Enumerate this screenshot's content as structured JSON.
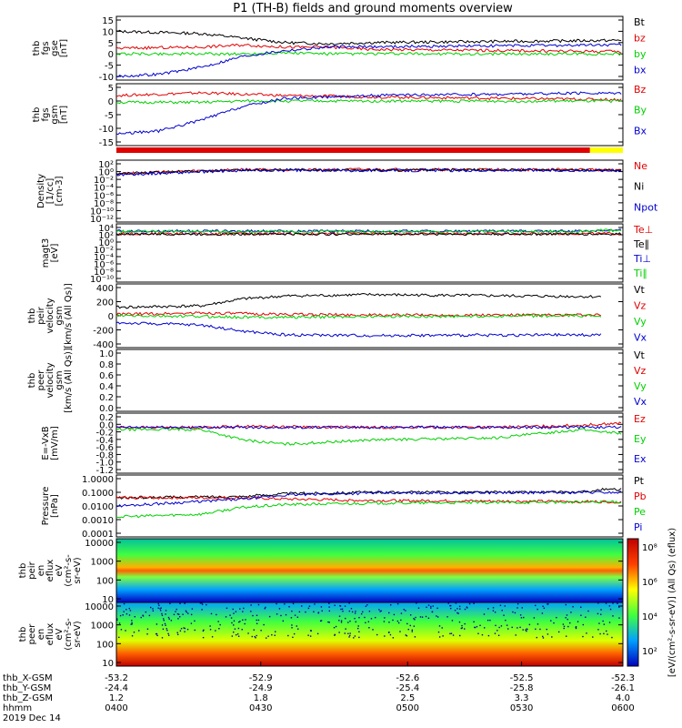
{
  "title": "P1 (TH-B) fields and ground moments overview",
  "colors": {
    "black": "#000000",
    "red": "#e00000",
    "green": "#00d000",
    "blue": "#0000d0",
    "yellow": "#ffff00"
  },
  "chart_data": [
    {
      "type": "line",
      "id": "fgs_gse",
      "ylabel": [
        "thb",
        "fgs",
        "gse",
        "[nT]"
      ],
      "ylim": [
        -10,
        15
      ],
      "yticks": [
        "15",
        "10",
        "5",
        "0",
        "-5",
        "-10"
      ],
      "legend": [
        {
          "name": "Bt",
          "color": "#000000"
        },
        {
          "name": "bz",
          "color": "#e00000"
        },
        {
          "name": "by",
          "color": "#00d000"
        },
        {
          "name": "bx",
          "color": "#0000d0"
        }
      ],
      "series": [
        {
          "name": "Bt",
          "x": [
            0,
            20,
            30,
            40,
            50,
            60,
            120
          ],
          "y": [
            10,
            9,
            7,
            5,
            4.5,
            5,
            6
          ]
        },
        {
          "name": "bz",
          "x": [
            0,
            20,
            30,
            40,
            50,
            60,
            120
          ],
          "y": [
            2.5,
            3,
            4,
            3,
            3,
            2,
            1
          ]
        },
        {
          "name": "by",
          "x": [
            0,
            20,
            30,
            40,
            50,
            60,
            120
          ],
          "y": [
            0,
            0,
            0,
            0.5,
            0,
            0,
            0
          ]
        },
        {
          "name": "bx",
          "x": [
            0,
            10,
            20,
            30,
            40,
            50,
            120
          ],
          "y": [
            -10,
            -9,
            -6,
            -1,
            1.5,
            3,
            4
          ]
        }
      ]
    },
    {
      "type": "line",
      "id": "fgs_gsm",
      "ylabel": [
        "thb",
        "fgs",
        "gsm",
        "[nT]"
      ],
      "ylim": [
        -15,
        5
      ],
      "yticks": [
        "5",
        "0",
        "-5",
        "-10",
        "-15"
      ],
      "legend": [
        {
          "name": "Bz",
          "color": "#e00000"
        },
        {
          "name": "By",
          "color": "#00d000"
        },
        {
          "name": "Bx",
          "color": "#0000d0"
        }
      ],
      "series": [
        {
          "name": "Bz",
          "x": [
            0,
            20,
            30,
            40,
            60,
            120
          ],
          "y": [
            2,
            3,
            2.5,
            2,
            1.5,
            0.5
          ]
        },
        {
          "name": "By",
          "x": [
            0,
            20,
            30,
            40,
            60,
            120
          ],
          "y": [
            -0.5,
            -0.5,
            0,
            0,
            0,
            0
          ]
        },
        {
          "name": "Bx",
          "x": [
            0,
            10,
            20,
            30,
            40,
            60,
            120
          ],
          "y": [
            -12,
            -11,
            -7,
            -2,
            1,
            2,
            3
          ]
        }
      ]
    },
    {
      "type": "line",
      "id": "density",
      "log": true,
      "ylabel": [
        "Density",
        "[1/cc]",
        "[cm-3]"
      ],
      "ylim": [
        -12,
        2
      ],
      "yticks": [
        "10²",
        "10⁰",
        "10⁻²",
        "10⁻⁴",
        "10⁻⁶",
        "10⁻⁸",
        "10⁻¹⁰",
        "10⁻¹²"
      ],
      "legend": [
        {
          "name": "Ne",
          "color": "#e00000"
        },
        {
          "name": "Ni",
          "color": "#000000"
        },
        {
          "name": "Npot",
          "color": "#0000d0"
        }
      ],
      "series": [
        {
          "name": "Ne",
          "x": [
            0,
            30,
            60,
            120
          ],
          "y": [
            -0.5,
            0.5,
            0.5,
            0.5
          ]
        },
        {
          "name": "Ni",
          "x": [
            0,
            30,
            60,
            120
          ],
          "y": [
            -0.5,
            0.4,
            0.4,
            0.4
          ]
        },
        {
          "name": "Npot",
          "x": [
            0,
            30,
            60,
            120
          ],
          "y": [
            -0.8,
            0.3,
            0.3,
            0.3
          ]
        }
      ]
    },
    {
      "type": "line",
      "id": "temperature",
      "log": true,
      "ylabel": [
        "magt3",
        "[eV]"
      ],
      "ylim": [
        -10,
        4
      ],
      "yticks": [
        "10⁴",
        "10²",
        "10⁰",
        "10⁻²",
        "10⁻⁴",
        "10⁻⁶",
        "10⁻⁸",
        "10⁻¹⁰"
      ],
      "legend": [
        {
          "name": "Te⊥",
          "color": "#e00000"
        },
        {
          "name": "Te∥",
          "color": "#000000"
        },
        {
          "name": "Ti⊥",
          "color": "#0000d0"
        },
        {
          "name": "Ti∥",
          "color": "#00d000"
        }
      ],
      "series": [
        {
          "name": "Te⊥",
          "x": [
            0,
            120
          ],
          "y": [
            2.3,
            2.3
          ]
        },
        {
          "name": "Te∥",
          "x": [
            0,
            120
          ],
          "y": [
            2.2,
            2.2
          ]
        },
        {
          "name": "Ti⊥",
          "x": [
            0,
            110,
            115,
            120
          ],
          "y": [
            3,
            3,
            3.3,
            3.3
          ]
        },
        {
          "name": "Ti∥",
          "x": [
            0,
            110,
            115,
            120
          ],
          "y": [
            2.9,
            2.9,
            3.2,
            3.2
          ]
        }
      ]
    },
    {
      "type": "line",
      "id": "peir_velocity",
      "ylabel": [
        "thb",
        "peir",
        "velocity",
        "gsm",
        "[km/s (All Qs)]"
      ],
      "ylim": [
        -400,
        400
      ],
      "yticks": [
        "400",
        "200",
        "0",
        "-200",
        "-400"
      ],
      "legend": [
        {
          "name": "Vt",
          "color": "#000000"
        },
        {
          "name": "Vz",
          "color": "#e00000"
        },
        {
          "name": "Vy",
          "color": "#00d000"
        },
        {
          "name": "Vx",
          "color": "#0000d0"
        }
      ],
      "series": [
        {
          "name": "Vt",
          "x": [
            0,
            20,
            30,
            40,
            60,
            115
          ],
          "y": [
            120,
            140,
            240,
            280,
            300,
            270
          ]
        },
        {
          "name": "Vz",
          "x": [
            0,
            20,
            30,
            40,
            60,
            115
          ],
          "y": [
            20,
            40,
            30,
            20,
            10,
            10
          ]
        },
        {
          "name": "Vy",
          "x": [
            0,
            20,
            30,
            40,
            60,
            115
          ],
          "y": [
            0,
            -10,
            -20,
            -20,
            -10,
            0
          ]
        },
        {
          "name": "Vx",
          "x": [
            0,
            20,
            30,
            40,
            60,
            115
          ],
          "y": [
            -100,
            -130,
            -220,
            -270,
            -280,
            -270
          ]
        }
      ]
    },
    {
      "type": "line",
      "id": "peer_velocity",
      "ylabel": [
        "thb",
        "peer",
        "velocity",
        "gsm",
        "[km/s (All Qs)]"
      ],
      "ylim": [
        0,
        1
      ],
      "yticks": [
        "1.0",
        "0.8",
        "0.6",
        "0.4",
        "0.2",
        "0.0"
      ],
      "legend": [
        {
          "name": "Vt",
          "color": "#000000"
        },
        {
          "name": "Vz",
          "color": "#e00000"
        },
        {
          "name": "Vy",
          "color": "#00d000"
        },
        {
          "name": "Vx",
          "color": "#0000d0"
        }
      ],
      "series": []
    },
    {
      "type": "line",
      "id": "efield",
      "ylabel": [
        "E=-VxB",
        "[mV/m]"
      ],
      "ylim": [
        -2,
        0.5
      ],
      "yticks": [
        "0.2",
        "0.0",
        "-0.2",
        "-0.4",
        "-0.6",
        "-0.8",
        "-1.0",
        "-1.2"
      ],
      "legend": [
        {
          "name": "Ez",
          "color": "#e00000"
        },
        {
          "name": "Ey",
          "color": "#00d000"
        },
        {
          "name": "Ex",
          "color": "#0000d0"
        }
      ],
      "series": [
        {
          "name": "Ez",
          "x": [
            0,
            20,
            30,
            60,
            90,
            110,
            120
          ],
          "y": [
            0,
            0,
            0.05,
            0,
            0,
            0.1,
            0.2
          ]
        },
        {
          "name": "Ey",
          "x": [
            0,
            20,
            30,
            40,
            60,
            90,
            110,
            120
          ],
          "y": [
            -0.1,
            -0.1,
            -0.6,
            -0.8,
            -0.6,
            -0.5,
            -0.1,
            -0.3
          ]
        },
        {
          "name": "Ex",
          "x": [
            0,
            120
          ],
          "y": [
            0,
            0
          ]
        }
      ]
    },
    {
      "type": "line",
      "id": "pressure",
      "log": true,
      "ylabel": [
        "Pressure",
        "[nPa]"
      ],
      "ylim": [
        -4,
        0
      ],
      "yticks": [
        "1.0000",
        "0.1000",
        "0.0100",
        "0.0010",
        "0.0001"
      ],
      "legend": [
        {
          "name": "Pt",
          "color": "#000000"
        },
        {
          "name": "Pb",
          "color": "#e00000"
        },
        {
          "name": "Pe",
          "color": "#00d000"
        },
        {
          "name": "Pi",
          "color": "#0000d0"
        }
      ],
      "series": [
        {
          "name": "Pt",
          "x": [
            0,
            30,
            40,
            60,
            110,
            115,
            120
          ],
          "y": [
            -1.4,
            -1.3,
            -1.1,
            -1.0,
            -1.0,
            -0.8,
            -0.8
          ]
        },
        {
          "name": "Pb",
          "x": [
            0,
            30,
            40,
            60,
            120
          ],
          "y": [
            -1.4,
            -1.4,
            -1.5,
            -1.6,
            -1.7
          ]
        },
        {
          "name": "Pe",
          "x": [
            0,
            20,
            30,
            40,
            60,
            120
          ],
          "y": [
            -2.8,
            -2.6,
            -2.1,
            -1.9,
            -1.8,
            -1.7
          ]
        },
        {
          "name": "Pi",
          "x": [
            0,
            30,
            40,
            60,
            120
          ],
          "y": [
            -2.0,
            -1.5,
            -1.2,
            -1.05,
            -1.0
          ]
        }
      ]
    },
    {
      "type": "heatmap",
      "id": "peir_spectro",
      "ylabel": [
        "thb",
        "peir",
        "en",
        "eflux",
        "eV",
        "(cm²-s-",
        "sr-eV)"
      ],
      "ylim": [
        5,
        20000
      ],
      "yticks": [
        "10000",
        "1000",
        "100",
        "10"
      ],
      "zlim": [
        "10²",
        "10⁸"
      ]
    },
    {
      "type": "heatmap",
      "id": "peer_spectro",
      "ylabel": [
        "thb",
        "peer",
        "en",
        "eflux",
        "eV",
        "(cm²-s-",
        "sr-eV)"
      ],
      "ylim": [
        5,
        20000
      ],
      "yticks": [
        "10000",
        "1000",
        "100",
        "10"
      ],
      "zlim": [
        "10²",
        "10⁸"
      ]
    }
  ],
  "colorbar": {
    "ticks": [
      "10⁸",
      "10⁶",
      "10⁴",
      "10²"
    ],
    "label": "[eV/(cm²-s-sr-eV)] (All Qs) (eflux)"
  },
  "xaxis": {
    "rows": [
      {
        "label": "thb_X-GSM",
        "values": [
          "-53.2",
          "-52.9",
          "-52.6",
          "-52.5",
          "-52.3"
        ]
      },
      {
        "label": "thb_Y-GSM",
        "values": [
          "-24.4",
          "-24.9",
          "-25.4",
          "-25.8",
          "-26.1"
        ]
      },
      {
        "label": "thb_Z-GSM",
        "values": [
          "1.2",
          "1.8",
          "2.5",
          "3.3",
          "4.0"
        ]
      },
      {
        "label": "hhmm",
        "values": [
          "0400",
          "0430",
          "0500",
          "0530",
          "0600"
        ]
      }
    ],
    "date": "2019 Dec 14"
  }
}
